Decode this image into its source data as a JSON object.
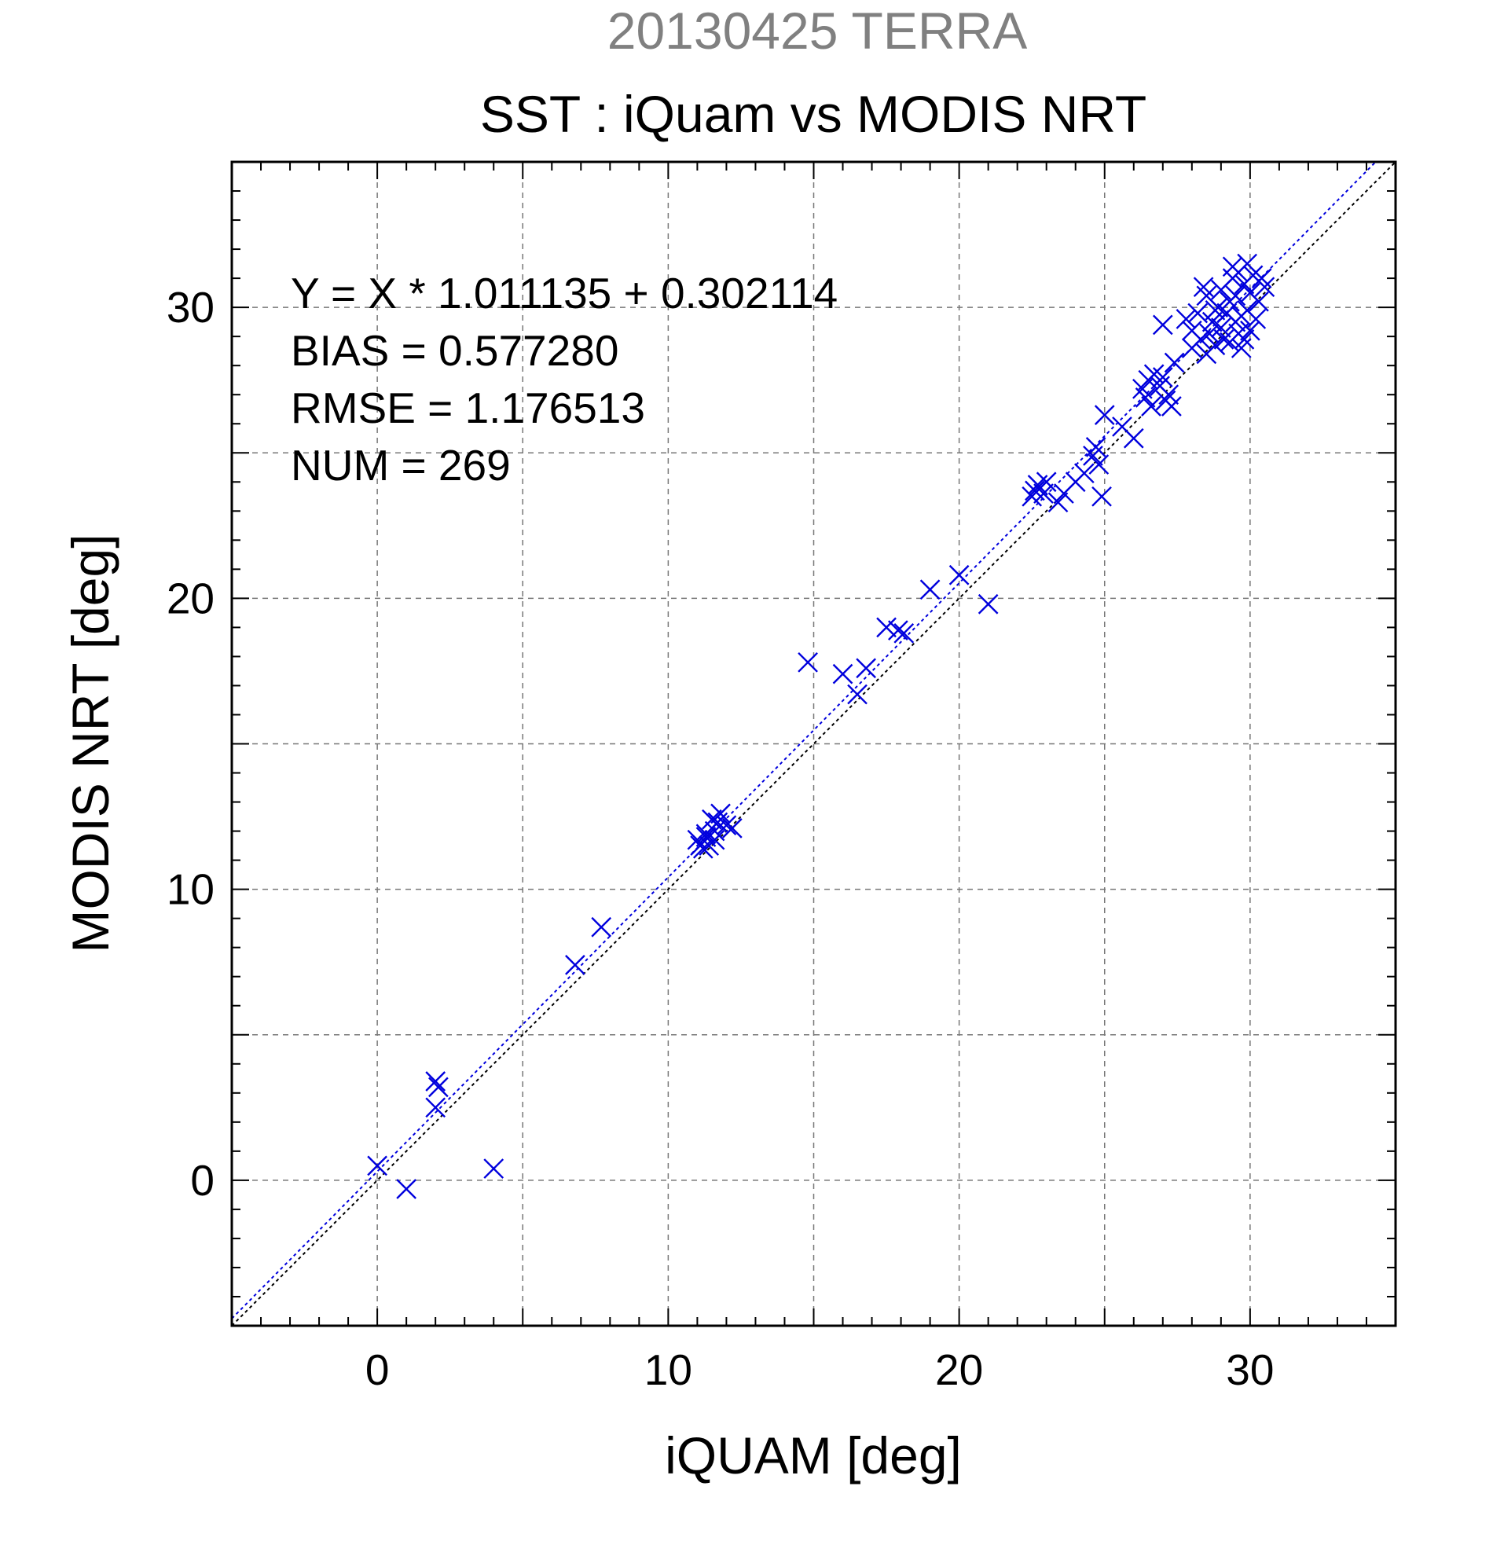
{
  "chart_data": {
    "type": "scatter",
    "supertitle": "20130425 TERRA",
    "title": "SST : iQuam vs MODIS NRT",
    "xlabel": "iQUAM [deg]",
    "ylabel": "MODIS NRT [deg]",
    "xlim": [
      -5,
      35
    ],
    "ylim": [
      -5,
      35
    ],
    "xticks": [
      0,
      10,
      20,
      30
    ],
    "yticks": [
      0,
      10,
      20,
      30
    ],
    "grid": true,
    "annotations": [
      "Y = X * 1.011135 + 0.302114",
      "BIAS = 0.577280",
      "RMSE = 1.176513",
      "NUM = 269"
    ],
    "regression": {
      "slope": 1.011135,
      "intercept": 0.302114
    },
    "colors": {
      "supertitle": "#808080",
      "points": "#0000dd",
      "fit_line": "#0000dd",
      "identity_line": "#000000"
    },
    "marker": "x",
    "series": [
      {
        "values": [
          [
            0.0,
            0.5
          ],
          [
            1.0,
            -0.3
          ],
          [
            2.0,
            3.4
          ],
          [
            2.1,
            3.2
          ],
          [
            2.0,
            2.5
          ],
          [
            4.0,
            0.4
          ],
          [
            6.8,
            7.4
          ],
          [
            7.7,
            8.7
          ],
          [
            11.0,
            11.7
          ],
          [
            11.1,
            11.5
          ],
          [
            11.2,
            11.4
          ],
          [
            11.3,
            11.8
          ],
          [
            11.4,
            11.5
          ],
          [
            11.5,
            12.4
          ],
          [
            11.6,
            12.0
          ],
          [
            11.7,
            12.3
          ],
          [
            11.8,
            12.6
          ],
          [
            12.0,
            12.2
          ],
          [
            12.2,
            12.1
          ],
          [
            11.3,
            11.9
          ],
          [
            11.6,
            11.7
          ],
          [
            14.8,
            17.8
          ],
          [
            16.0,
            17.4
          ],
          [
            16.5,
            16.7
          ],
          [
            16.8,
            17.6
          ],
          [
            17.5,
            19.0
          ],
          [
            17.9,
            18.9
          ],
          [
            18.1,
            18.8
          ],
          [
            19.0,
            20.3
          ],
          [
            20.0,
            20.8
          ],
          [
            21.0,
            19.8
          ],
          [
            22.5,
            23.5
          ],
          [
            22.6,
            23.7
          ],
          [
            22.7,
            23.9
          ],
          [
            22.9,
            23.6
          ],
          [
            23.0,
            24.0
          ],
          [
            23.4,
            23.3
          ],
          [
            23.6,
            23.6
          ],
          [
            24.0,
            24.0
          ],
          [
            24.3,
            24.3
          ],
          [
            24.6,
            24.9
          ],
          [
            24.7,
            25.2
          ],
          [
            24.8,
            24.6
          ],
          [
            24.9,
            23.5
          ],
          [
            25.0,
            26.3
          ],
          [
            25.6,
            25.9
          ],
          [
            26.0,
            25.5
          ],
          [
            26.3,
            27.2
          ],
          [
            26.4,
            26.9
          ],
          [
            26.5,
            27.5
          ],
          [
            26.6,
            26.6
          ],
          [
            26.7,
            27.7
          ],
          [
            26.9,
            27.3
          ],
          [
            27.0,
            27.6
          ],
          [
            27.1,
            26.8
          ],
          [
            27.2,
            27.0
          ],
          [
            27.3,
            26.6
          ],
          [
            27.4,
            28.1
          ],
          [
            27.0,
            29.4
          ],
          [
            27.8,
            29.6
          ],
          [
            28.0,
            28.6
          ],
          [
            28.0,
            29.2
          ],
          [
            28.2,
            29.8
          ],
          [
            28.3,
            28.9
          ],
          [
            28.5,
            28.4
          ],
          [
            28.5,
            30.4
          ],
          [
            28.6,
            29.1
          ],
          [
            28.7,
            29.5
          ],
          [
            28.8,
            28.7
          ],
          [
            28.9,
            30.0
          ],
          [
            29.0,
            29.3
          ],
          [
            29.0,
            30.6
          ],
          [
            29.1,
            28.9
          ],
          [
            29.2,
            29.8
          ],
          [
            29.3,
            30.2
          ],
          [
            29.3,
            28.8
          ],
          [
            29.4,
            31.0
          ],
          [
            29.5,
            29.5
          ],
          [
            29.5,
            30.4
          ],
          [
            29.6,
            31.2
          ],
          [
            29.7,
            29.7
          ],
          [
            29.7,
            28.6
          ],
          [
            29.8,
            30.8
          ],
          [
            29.9,
            31.5
          ],
          [
            29.9,
            29.9
          ],
          [
            30.0,
            30.5
          ],
          [
            30.1,
            31.1
          ],
          [
            30.2,
            29.6
          ],
          [
            30.3,
            30.2
          ],
          [
            30.4,
            31.0
          ],
          [
            30.5,
            30.7
          ],
          [
            29.4,
            31.4
          ],
          [
            28.4,
            30.7
          ],
          [
            29.6,
            29.1
          ],
          [
            28.8,
            29.9
          ],
          [
            29.8,
            28.9
          ],
          [
            30.0,
            29.2
          ]
        ]
      }
    ]
  }
}
